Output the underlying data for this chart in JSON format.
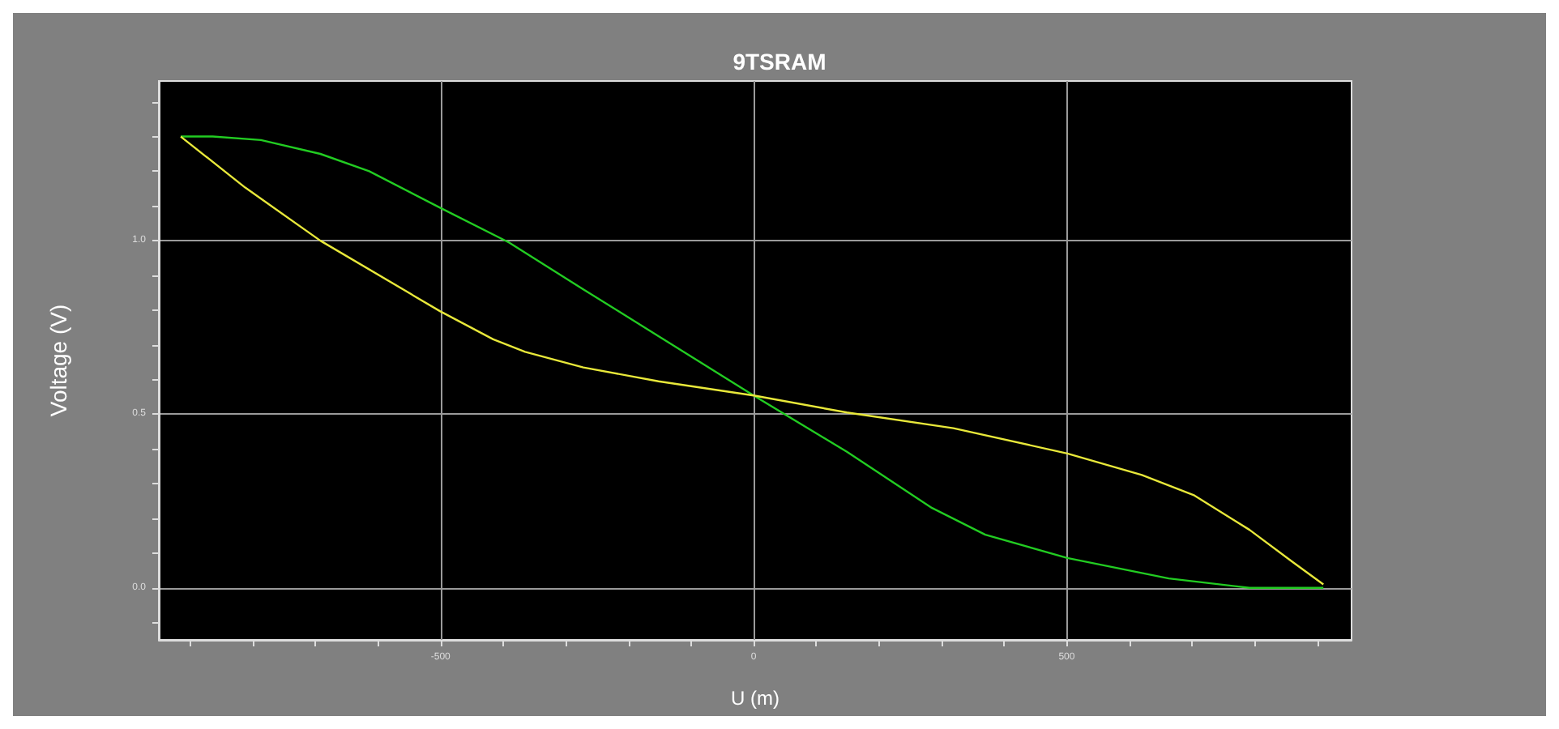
{
  "chart_data": {
    "type": "line",
    "title": "9TSRAM",
    "xlabel": "U (m)",
    "ylabel": "Voltage (V)",
    "xlim": [
      -950,
      955
    ],
    "ylim": [
      -0.15,
      1.46
    ],
    "xticks": [
      {
        "value": -900,
        "label": null
      },
      {
        "value": -800,
        "label": null
      },
      {
        "value": -700,
        "label": null
      },
      {
        "value": -600,
        "label": null
      },
      -500,
      {
        "value": -400,
        "label": null
      },
      {
        "value": -300,
        "label": null
      },
      {
        "value": -200,
        "label": null
      },
      {
        "value": -100,
        "label": null
      },
      0,
      {
        "value": 100,
        "label": null
      },
      {
        "value": 200,
        "label": null
      },
      {
        "value": 300,
        "label": null
      },
      {
        "value": 400,
        "label": null
      },
      500,
      {
        "value": 600,
        "label": null
      },
      {
        "value": 700,
        "label": null
      },
      {
        "value": 800,
        "label": null
      },
      {
        "value": 900,
        "label": null
      }
    ],
    "yticks": [
      {
        "value": -0.1,
        "label": null
      },
      {
        "value": 0,
        "label": "0.0"
      },
      {
        "value": 0.1,
        "label": null
      },
      {
        "value": 0.2,
        "label": null
      },
      {
        "value": 0.3,
        "label": null
      },
      {
        "value": 0.4,
        "label": null
      },
      0.5,
      {
        "value": 0.6,
        "label": null
      },
      {
        "value": 0.7,
        "label": null
      },
      {
        "value": 0.8,
        "label": null
      },
      {
        "value": 0.9,
        "label": null
      },
      {
        "value": 1,
        "label": "1.0"
      },
      {
        "value": 1.1,
        "label": null
      },
      {
        "value": 1.2,
        "label": null
      },
      {
        "value": 1.3,
        "label": null
      },
      {
        "value": 1.4,
        "label": null
      }
    ],
    "grid": true,
    "marker": "none",
    "line_style": "solid",
    "series": [
      {
        "color": "#22cc22",
        "x": [
          -915,
          -864,
          -787,
          -692,
          -614,
          -501,
          -391,
          -272,
          -152,
          0,
          149,
          285,
          370,
          501,
          663,
          792,
          910
        ],
        "values": [
          1.3,
          1.3,
          1.29,
          1.25,
          1.2,
          1.095,
          0.995,
          0.86,
          0.725,
          0.554,
          0.392,
          0.23,
          0.153,
          0.086,
          0.027,
          0.0,
          0.0
        ]
      },
      {
        "color": "#e8e83a",
        "x": [
          -915,
          -812,
          -692,
          -501,
          -416,
          -365,
          -272,
          -152,
          0,
          149,
          319,
          501,
          620,
          704,
          792,
          859,
          910
        ],
        "values": [
          1.3,
          1.153,
          1.0,
          0.797,
          0.716,
          0.68,
          0.635,
          0.595,
          0.554,
          0.505,
          0.46,
          0.387,
          0.325,
          0.266,
          0.167,
          0.077,
          0.01
        ]
      }
    ]
  }
}
